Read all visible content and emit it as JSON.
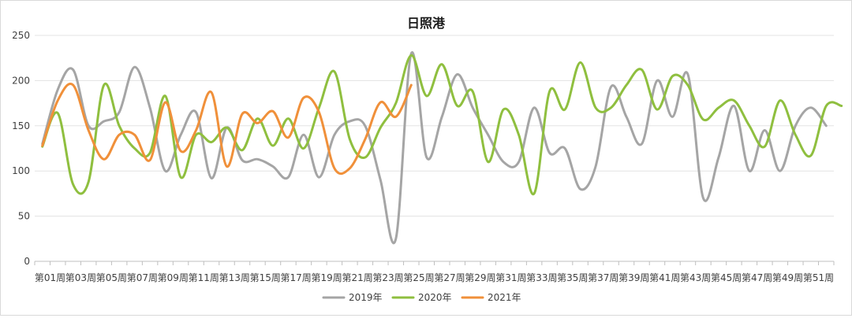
{
  "chart_data": {
    "type": "line",
    "title": "日照港",
    "xlabel": "",
    "ylabel": "",
    "ylim": [
      0,
      250
    ],
    "yticks": [
      0,
      50,
      100,
      150,
      200,
      250
    ],
    "grid": true,
    "legend_position": "bottom",
    "x_labels": [
      "第01周",
      "第03周",
      "第05周",
      "第07周",
      "第09周",
      "第11周",
      "第13周",
      "第15周",
      "第17周",
      "第19周",
      "第21周",
      "第23周",
      "第25周",
      "第27周",
      "第29周",
      "第31周",
      "第33周",
      "第35周",
      "第37周",
      "第39周",
      "第41周",
      "第43周",
      "第45周",
      "第47周",
      "第49周",
      "第51周"
    ],
    "series": [
      {
        "name": "2019年",
        "color": "#a5a5a5",
        "values": [
          130,
          190,
          212,
          150,
          155,
          165,
          215,
          170,
          100,
          140,
          165,
          92,
          148,
          112,
          113,
          105,
          93,
          140,
          93,
          140,
          155,
          150,
          90,
          25,
          230,
          115,
          160,
          207,
          170,
          140,
          110,
          110,
          170,
          120,
          125,
          80,
          105,
          193,
          160,
          130,
          200,
          160,
          207,
          70,
          115,
          172,
          100,
          145,
          100,
          150,
          170,
          150
        ]
      },
      {
        "name": "2020年",
        "color": "#8fbf3f",
        "values": [
          127,
          164,
          85,
          88,
          195,
          150,
          125,
          120,
          183,
          93,
          140,
          132,
          148,
          123,
          158,
          128,
          158,
          125,
          170,
          210,
          135,
          115,
          148,
          175,
          228,
          183,
          218,
          172,
          188,
          110,
          168,
          140,
          75,
          188,
          168,
          220,
          170,
          170,
          195,
          212,
          168,
          205,
          195,
          157,
          170,
          178,
          150,
          127,
          178,
          140,
          117,
          172,
          172
        ]
      },
      {
        "name": "2021年",
        "color": "#f0903a",
        "values": [
          128,
          178,
          195,
          145,
          113,
          140,
          140,
          112,
          176,
          122,
          145,
          187,
          105,
          163,
          153,
          166,
          137,
          181,
          165,
          103,
          103,
          135,
          176,
          160,
          195
        ]
      }
    ]
  }
}
